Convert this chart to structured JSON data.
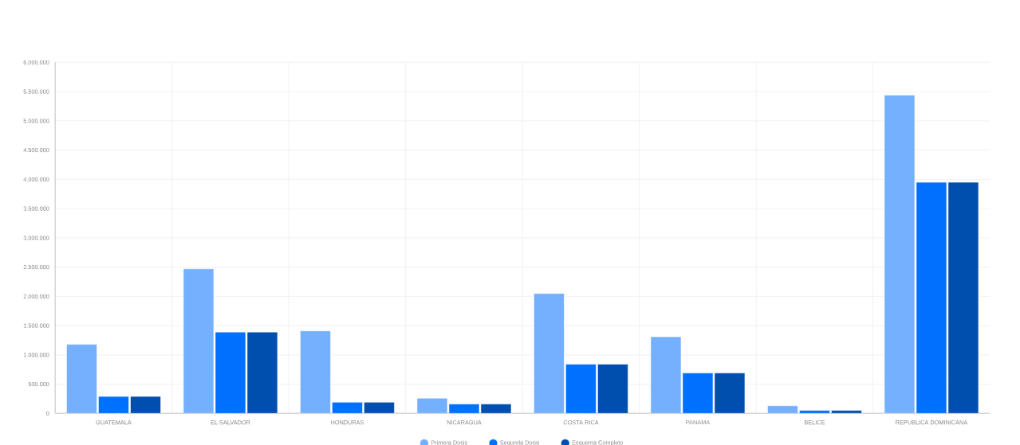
{
  "chart_data": {
    "type": "bar",
    "categories": [
      "GUATEMALA",
      "EL SALVADOR",
      "HONDURAS",
      "NICARAGUA",
      "COSTA RICA",
      "PANAMA",
      "BELICE",
      "REPUBLICA DOMINICANA"
    ],
    "series": [
      {
        "name": "Primera Dosis",
        "color": "#74b0ff",
        "values": [
          1180000,
          2470000,
          1410000,
          260000,
          2050000,
          1310000,
          130000,
          5440000
        ]
      },
      {
        "name": "Segunda Dosis",
        "color": "#0070ff",
        "values": [
          290000,
          1390000,
          190000,
          160000,
          840000,
          690000,
          50000,
          3950000
        ]
      },
      {
        "name": "Esquema Completo",
        "color": "#004ead",
        "values": [
          290000,
          1390000,
          190000,
          160000,
          840000,
          690000,
          50000,
          3950000
        ]
      }
    ],
    "ylim": [
      0,
      6000000
    ],
    "yticks": [
      {
        "value": 0,
        "label": "0"
      },
      {
        "value": 500000,
        "label": "500.000"
      },
      {
        "value": 1000000,
        "label": "1.000.000"
      },
      {
        "value": 1500000,
        "label": "1.500.000"
      },
      {
        "value": 2000000,
        "label": "2.000.000"
      },
      {
        "value": 2500000,
        "label": "2.500.000"
      },
      {
        "value": 3000000,
        "label": "3.000.000"
      },
      {
        "value": 3500000,
        "label": "3.500.000"
      },
      {
        "value": 4000000,
        "label": "4.000.000"
      },
      {
        "value": 4500000,
        "label": "4.500.000"
      },
      {
        "value": 5000000,
        "label": "5.000.000"
      },
      {
        "value": 5500000,
        "label": "5.500.000"
      },
      {
        "value": 6000000,
        "label": "6.000.000"
      }
    ],
    "grid": true,
    "legend": "bottom",
    "marker": "circle"
  }
}
